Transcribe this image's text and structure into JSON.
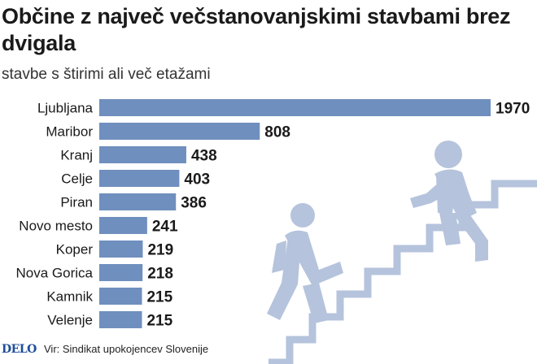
{
  "header": {
    "title": "Občine z največ večstanovanjskimi stavbami brez dvigala",
    "subtitle": "stavbe s štirimi ali več etažami"
  },
  "footer": {
    "logo": "DELO",
    "source": "Vir: Sindikat upokojencev Slovenije"
  },
  "colors": {
    "bar": "#6f8fbe",
    "illustration": "#b5c3dc"
  },
  "illustration": {
    "icon": "people-climbing-stairs-icon"
  },
  "chart_data": {
    "type": "bar",
    "orientation": "horizontal",
    "categories": [
      "Ljubljana",
      "Maribor",
      "Kranj",
      "Celje",
      "Piran",
      "Novo mesto",
      "Koper",
      "Nova Gorica",
      "Kamnik",
      "Velenje"
    ],
    "values": [
      1970,
      808,
      438,
      403,
      386,
      241,
      219,
      218,
      215,
      215
    ],
    "data_labels": [
      "1970",
      "808",
      "438",
      "403",
      "386",
      "241",
      "219",
      "218",
      "215",
      "215"
    ],
    "xlim": [
      0,
      1970
    ],
    "grid": false,
    "legend": "none"
  }
}
